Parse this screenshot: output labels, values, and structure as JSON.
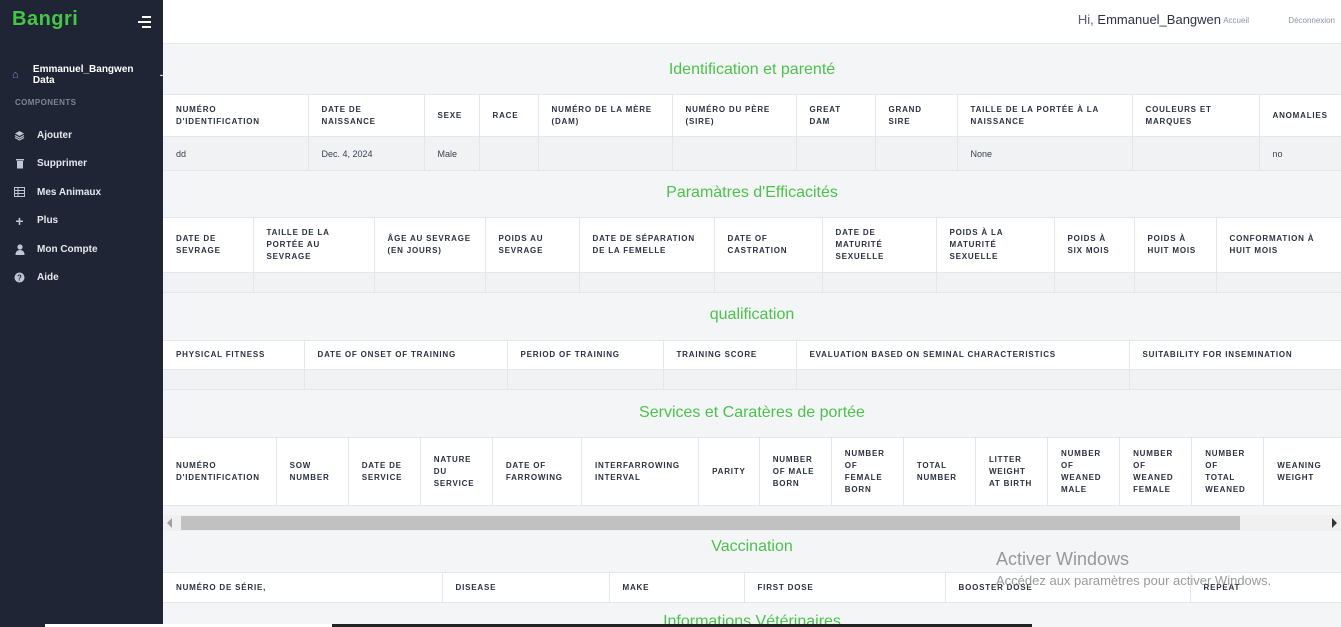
{
  "sidebar": {
    "brand": "Bangri",
    "user_label": "Emmanuel_Bangwen Data",
    "section_label": "COMPONENTS",
    "items": [
      {
        "label": "Ajouter",
        "icon": "layers-icon"
      },
      {
        "label": "Supprimer",
        "icon": "trash-icon"
      },
      {
        "label": "Mes Animaux",
        "icon": "table-icon"
      },
      {
        "label": "Plus",
        "icon": "plus-icon"
      },
      {
        "label": "Mon Compte",
        "icon": "user-icon"
      },
      {
        "label": "Aide",
        "icon": "help-icon"
      }
    ]
  },
  "header": {
    "greeting": "Hi,",
    "username": "Emmanuel_Bangwen",
    "links": [
      "Accueil",
      "Déconnexion"
    ]
  },
  "sections": {
    "identification": {
      "title": "Identification et parenté",
      "headers": [
        "Numéro d'identification",
        "Date de naissance",
        "Sexe",
        "Race",
        "Numéro de la mère (Dam)",
        "Numéro du père (Sire)",
        "Great Dam",
        "Grand Sire",
        "Taille de la portée à la naissance",
        "Couleurs et marques",
        "Anomalies"
      ],
      "row": [
        "dd",
        "Dec. 4, 2024",
        "Male",
        "",
        "",
        "",
        "",
        "",
        "None",
        "",
        "no"
      ]
    },
    "efficacite": {
      "title": "Paramàtres d'Efficacités",
      "headers": [
        "Date de sevrage",
        "Taille de la portée au sevrage",
        "Âge au sevrage (en jours)",
        "Poids au sevrage",
        "Date de séparation de la femelle",
        "Date of castration",
        "Date de maturité sexuelle",
        "Poids à la maturité sexuelle",
        "Poids à six mois",
        "Poids à huit mois",
        "Conformation à huit mois"
      ]
    },
    "qualification": {
      "title": "qualification",
      "headers": [
        "Physical fitness",
        "Date of onset of training",
        "Period of training",
        "Training score",
        "Evaluation based on seminal characteristics",
        "Suitability for insemination"
      ]
    },
    "services": {
      "title": "Services et Caratères de portée",
      "headers": [
        "Numéro d'identification",
        "Sow number",
        "Date de service",
        "Nature du service",
        "Date of farrowing",
        "Interfarrowing interval",
        "Parity",
        "Number of male born",
        "Number of female born",
        "Total number",
        "Litter weight at birth",
        "Number of weaned male",
        "Number of weaned female",
        "Number of total weaned",
        "Weaning weight"
      ]
    },
    "vaccination": {
      "title": "Vaccination",
      "headers": [
        "Numéro de série,",
        "Disease",
        "Make",
        "First dose",
        "Booster dose",
        "Repeat"
      ]
    },
    "veterinaire": {
      "title": "Informations Vétérinaires"
    }
  },
  "watermark": {
    "line1": "Activer Windows",
    "line2": "Accédez aux paramètres pour activer Windows."
  },
  "colors": {
    "sidebar_bg": "#1f2535",
    "accent_green": "#4cc24c",
    "brand_green": "#45c745"
  }
}
